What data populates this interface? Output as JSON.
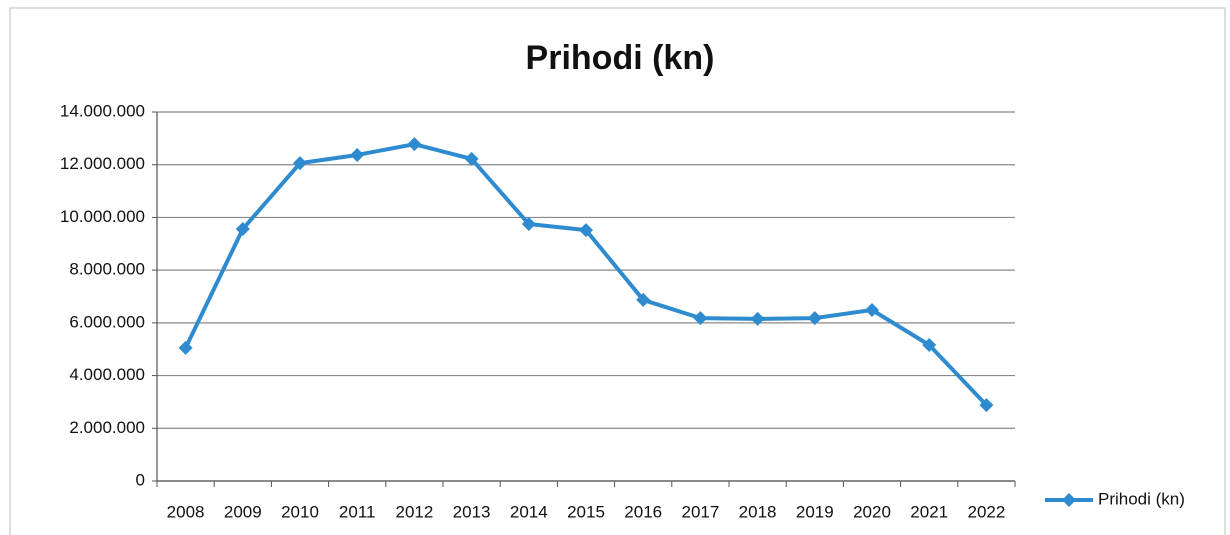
{
  "chart_data": {
    "type": "line",
    "title": "Prihodi (kn)",
    "categories": [
      "2008",
      "2009",
      "2010",
      "2011",
      "2012",
      "2013",
      "2014",
      "2015",
      "2016",
      "2017",
      "2018",
      "2019",
      "2020",
      "2021",
      "2022"
    ],
    "series": [
      {
        "name": "Prihodi (kn)",
        "color": "#2e8bd0",
        "values": [
          5050000,
          9560000,
          12060000,
          12370000,
          12780000,
          12220000,
          9750000,
          9520000,
          6870000,
          6180000,
          6150000,
          6180000,
          6490000,
          5160000,
          2880000
        ]
      }
    ],
    "ylim": [
      0,
      14000000
    ],
    "yticks": [
      0,
      {
        "value": 2000000,
        "label": "2.000.000"
      },
      {
        "value": 4000000,
        "label": "4.000.000"
      },
      {
        "value": 6000000,
        "label": "6.000.000"
      },
      {
        "value": 8000000,
        "label": "8.000.000"
      },
      {
        "value": 10000000,
        "label": "10.000.000"
      },
      {
        "value": 12000000,
        "label": "12.000.000"
      },
      {
        "value": 14000000,
        "label": "14.000.000"
      }
    ],
    "grid": true,
    "legend": "right"
  }
}
